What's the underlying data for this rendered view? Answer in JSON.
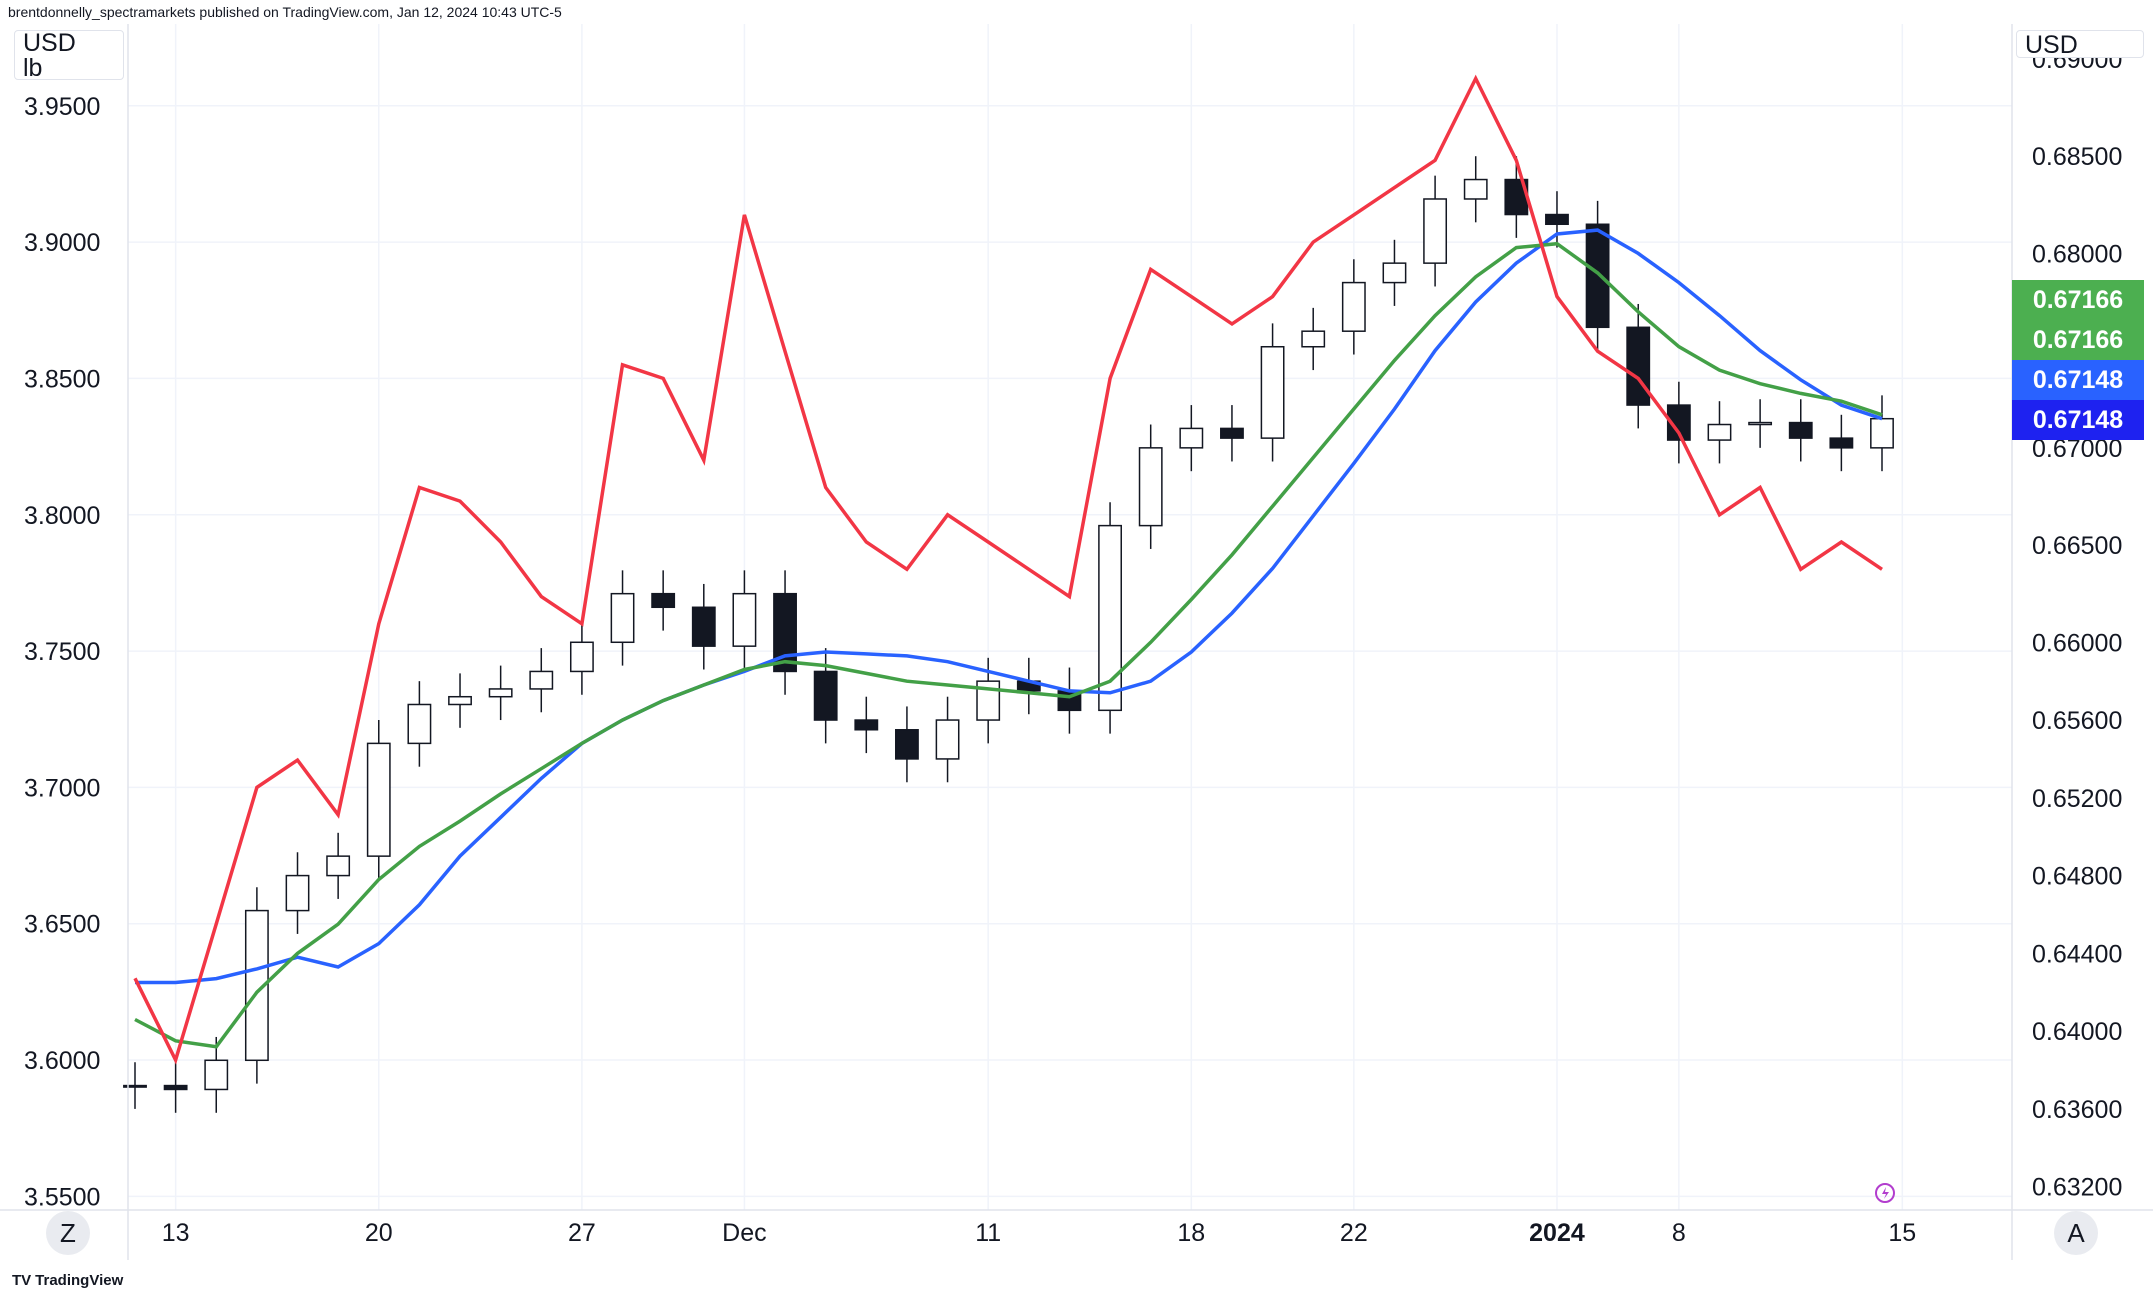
{
  "header": {
    "publisher_line": "brentdonnelly_spectramarkets published on TradingView.com, Jan 12, 2024 10:43 UTC-5"
  },
  "left_scale": {
    "unit": "USD",
    "unit2": "lb",
    "ticks": [
      "3.9500",
      "3.9000",
      "3.8500",
      "3.8000",
      "3.7500",
      "3.7000",
      "3.6500",
      "3.6000",
      "3.5500"
    ]
  },
  "right_scale": {
    "unit": "USD",
    "ticks": [
      "0.69000",
      "0.68500",
      "0.68000",
      "0.67000",
      "0.66500",
      "0.66000",
      "0.65600",
      "0.65200",
      "0.64800",
      "0.64400",
      "0.64000",
      "0.63600",
      "0.63200"
    ]
  },
  "time_axis": {
    "labels": [
      "13",
      "20",
      "27",
      "Dec",
      "11",
      "18",
      "22",
      "2024",
      "8",
      "15"
    ]
  },
  "price_labels": [
    {
      "text": "0.67166",
      "color": "#4caf50"
    },
    {
      "text": "0.67166",
      "color": "#4caf50"
    },
    {
      "text": "0.67148",
      "color": "#2962ff"
    },
    {
      "text": "0.67148",
      "color": "#1e22f0"
    }
  ],
  "buttons": {
    "left_scale_btn": "Z",
    "right_scale_btn": "A"
  },
  "footer": {
    "brand": "TradingView",
    "logo": "TV"
  },
  "colors": {
    "price": "#131722",
    "overlay": "#f23645",
    "ma_fast": "#43a047",
    "ma_slow": "#2962ff",
    "grid": "#f0f3fa"
  },
  "chart_data": {
    "type": "line",
    "title": "",
    "xlabel": "",
    "ylabel": "",
    "x": [
      "Nov 10",
      "Nov 13",
      "Nov 14",
      "Nov 15",
      "Nov 16",
      "Nov 17",
      "Nov 20",
      "Nov 21",
      "Nov 22",
      "Nov 23",
      "Nov 24",
      "Nov 27",
      "Nov 28",
      "Nov 29",
      "Nov 30",
      "Dec 1",
      "Dec 4",
      "Dec 5",
      "Dec 6",
      "Dec 7",
      "Dec 8",
      "Dec 11",
      "Dec 12",
      "Dec 13",
      "Dec 14",
      "Dec 15",
      "Dec 18",
      "Dec 19",
      "Dec 20",
      "Dec 21",
      "Dec 22",
      "Dec 26",
      "Dec 27",
      "Dec 28",
      "Dec 29",
      "Jan 2",
      "Jan 3",
      "Jan 4",
      "Jan 5",
      "Jan 8",
      "Jan 9",
      "Jan 10",
      "Jan 11",
      "Jan 12"
    ],
    "series": [
      {
        "role": "price",
        "axis": "right",
        "style": "candles",
        "values": [
          0.6372,
          0.637,
          0.6385,
          0.6462,
          0.648,
          0.649,
          0.6548,
          0.6568,
          0.6572,
          0.6576,
          0.6585,
          0.66,
          0.6625,
          0.6618,
          0.6598,
          0.6625,
          0.6585,
          0.656,
          0.6555,
          0.654,
          0.656,
          0.658,
          0.6575,
          0.6565,
          0.666,
          0.67,
          0.671,
          0.6705,
          0.6752,
          0.676,
          0.6785,
          0.6795,
          0.6828,
          0.6838,
          0.682,
          0.6815,
          0.6762,
          0.6722,
          0.6704,
          0.6712,
          0.6713,
          0.6705,
          0.67,
          0.6715
        ]
      },
      {
        "role": "overlay",
        "axis": "left",
        "values": [
          3.63,
          3.6,
          3.65,
          3.7,
          3.71,
          3.69,
          3.76,
          3.81,
          3.805,
          3.79,
          3.77,
          3.76,
          3.855,
          3.85,
          3.82,
          3.91,
          3.86,
          3.81,
          3.79,
          3.78,
          3.8,
          3.79,
          3.78,
          3.77,
          3.85,
          3.89,
          3.88,
          3.87,
          3.88,
          3.9,
          3.91,
          3.92,
          3.93,
          3.96,
          3.93,
          3.88,
          3.86,
          3.85,
          3.83,
          3.8,
          3.81,
          3.78,
          3.79,
          3.78
        ]
      },
      {
        "role": "ma_fast",
        "axis": "right",
        "values": [
          0.6406,
          0.6395,
          0.6392,
          0.642,
          0.644,
          0.6455,
          0.6478,
          0.6495,
          0.6508,
          0.6522,
          0.6535,
          0.6548,
          0.656,
          0.657,
          0.6578,
          0.6586,
          0.659,
          0.6588,
          0.6584,
          0.658,
          0.6578,
          0.6576,
          0.6574,
          0.6572,
          0.658,
          0.66,
          0.6622,
          0.6645,
          0.667,
          0.6695,
          0.672,
          0.6745,
          0.6768,
          0.6788,
          0.6803,
          0.6805,
          0.679,
          0.677,
          0.6752,
          0.674,
          0.6733,
          0.6728,
          0.6724,
          0.6717
        ]
      },
      {
        "role": "ma_slow",
        "axis": "right",
        "values": [
          0.6425,
          0.6425,
          0.6427,
          0.6432,
          0.6438,
          0.6433,
          0.6445,
          0.6465,
          0.649,
          0.651,
          0.653,
          0.6548,
          0.656,
          0.657,
          0.6578,
          0.6585,
          0.6593,
          0.6595,
          0.6594,
          0.6593,
          0.659,
          0.6585,
          0.658,
          0.6575,
          0.6574,
          0.658,
          0.6595,
          0.6615,
          0.6638,
          0.6665,
          0.6692,
          0.672,
          0.675,
          0.6775,
          0.6795,
          0.681,
          0.6812,
          0.68,
          0.6785,
          0.6768,
          0.675,
          0.6735,
          0.6722,
          0.6715
        ]
      }
    ],
    "y_left": {
      "ylim": [
        3.545,
        3.98
      ]
    },
    "y_right": {
      "ylim": [
        0.6308,
        0.6918
      ]
    },
    "grid": true
  }
}
